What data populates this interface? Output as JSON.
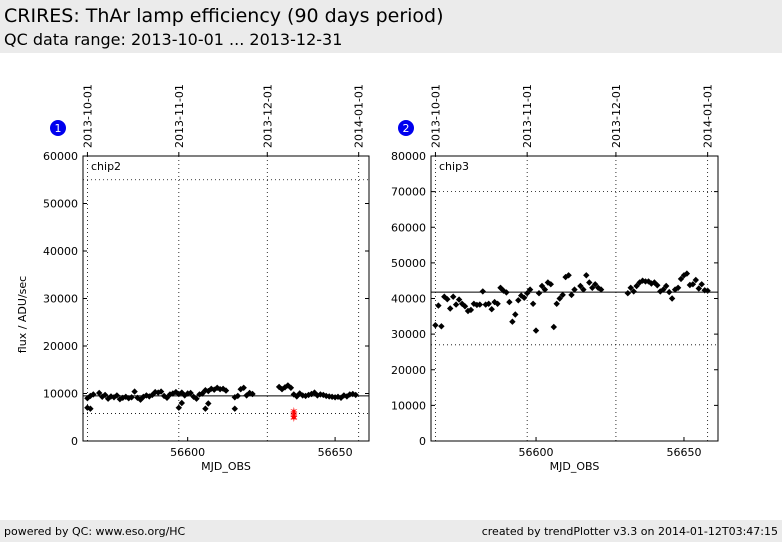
{
  "header": {
    "title": "CRIRES: ThAr lamp efficiency (90 days period)",
    "subtitle": "QC data range: 2013-10-01 ... 2013-12-31"
  },
  "footer": {
    "left": "powered by QC: www.eso.org/HC",
    "right": "created by trendPlotter v3.3 on 2014-01-12T03:47:15"
  },
  "colors": {
    "badge": "#0000ee",
    "points": "#000000",
    "outliers": "#ff0000",
    "header_bg": "#ebebeb"
  },
  "chart_data": [
    {
      "type": "scatter",
      "badge": "1",
      "panel_label": "chip2",
      "xlabel": "MJD_OBS",
      "ylabel": "flux / ADU/sec",
      "xlim": [
        56564.5,
        56661.5
      ],
      "ylim": [
        0,
        60000
      ],
      "xticks": [
        56600,
        56650
      ],
      "yticks": [
        0,
        10000,
        20000,
        30000,
        40000,
        50000,
        60000
      ],
      "top_axis": {
        "labels": [
          "2013-10-01",
          "2013-11-01",
          "2013-12-01",
          "2014-01-01"
        ],
        "mjd": [
          56566,
          56597,
          56627,
          56658
        ]
      },
      "reference_line": 9500,
      "limit_lines": [
        55000,
        5800
      ],
      "x": [
        56566,
        56567,
        56568,
        56570,
        56571,
        56572,
        56573,
        56574,
        56575,
        56576,
        56577,
        56578,
        56579,
        56580,
        56581,
        56582,
        56583,
        56584,
        56585,
        56586,
        56587,
        56588,
        56589,
        56590,
        56591,
        56592,
        56593,
        56594,
        56595,
        56596,
        56597,
        56598,
        56599,
        56600,
        56601,
        56602,
        56603,
        56604,
        56605,
        56606,
        56607,
        56608,
        56609,
        56610,
        56611,
        56612,
        56613,
        56616,
        56617,
        56618,
        56619,
        56620,
        56621,
        56622,
        56631,
        56632,
        56633,
        56634,
        56635,
        56636,
        56637,
        56638,
        56639,
        56640,
        56641,
        56642,
        56643,
        56644,
        56645,
        56646,
        56647,
        56648,
        56649,
        56650,
        56651,
        56652,
        56653,
        56654,
        56655,
        56656,
        56657,
        56566,
        56567,
        56597,
        56598,
        56606,
        56607,
        56616
      ],
      "y": [
        9000,
        9500,
        9800,
        10100,
        9300,
        9700,
        8900,
        9400,
        9200,
        9600,
        8800,
        9100,
        9300,
        9000,
        9200,
        10400,
        9100,
        8700,
        9300,
        9600,
        9400,
        9700,
        10300,
        10200,
        10400,
        9500,
        9100,
        9800,
        10000,
        10300,
        9900,
        10200,
        9600,
        10000,
        10100,
        9300,
        8900,
        9800,
        10000,
        10700,
        10500,
        11000,
        10800,
        11200,
        10900,
        11000,
        10600,
        9200,
        9500,
        10900,
        11200,
        9600,
        10100,
        9900,
        11400,
        10900,
        11300,
        11700,
        11200,
        9800,
        9400,
        10000,
        9600,
        9500,
        9700,
        9900,
        10200,
        9600,
        9800,
        9700,
        9500,
        9400,
        9300,
        9200,
        9300,
        9100,
        9600,
        9400,
        9800,
        9900,
        9700,
        7000,
        6800,
        7000,
        8000,
        6800,
        7900,
        6800
      ],
      "outliers": {
        "x": [
          56636,
          56636,
          56636,
          56636,
          56636
        ],
        "y": [
          6300,
          5900,
          5500,
          5100,
          4800
        ]
      }
    },
    {
      "type": "scatter",
      "badge": "2",
      "panel_label": "chip3",
      "xlabel": "MJD_OBS",
      "ylabel": "",
      "xlim": [
        56564.5,
        56661.5
      ],
      "ylim": [
        0,
        80000
      ],
      "xticks": [
        56600,
        56650
      ],
      "yticks": [
        0,
        10000,
        20000,
        30000,
        40000,
        50000,
        60000,
        70000,
        80000
      ],
      "top_axis": {
        "labels": [
          "2013-10-01",
          "2013-11-01",
          "2013-12-01",
          "2014-01-01"
        ],
        "mjd": [
          56566,
          56597,
          56627,
          56658
        ]
      },
      "reference_line": 41800,
      "limit_lines": [
        70000,
        27000
      ],
      "x": [
        56566,
        56567,
        56568,
        56569,
        56570,
        56571,
        56572,
        56573,
        56574,
        56575,
        56576,
        56577,
        56578,
        56579,
        56580,
        56581,
        56582,
        56583,
        56584,
        56585,
        56586,
        56587,
        56588,
        56589,
        56590,
        56591,
        56592,
        56593,
        56594,
        56595,
        56596,
        56597,
        56598,
        56599,
        56600,
        56601,
        56602,
        56603,
        56604,
        56605,
        56606,
        56607,
        56608,
        56609,
        56610,
        56611,
        56612,
        56613,
        56615,
        56616,
        56617,
        56618,
        56619,
        56620,
        56621,
        56622,
        56631,
        56632,
        56633,
        56634,
        56635,
        56636,
        56637,
        56638,
        56639,
        56640,
        56641,
        56642,
        56643,
        56644,
        56645,
        56646,
        56647,
        56648,
        56649,
        56650,
        56651,
        56652,
        56653,
        56654,
        56655,
        56656,
        56657,
        56658
      ],
      "y": [
        32500,
        38000,
        32200,
        40500,
        39800,
        37200,
        40500,
        38300,
        39700,
        38500,
        37800,
        36500,
        36800,
        38500,
        38200,
        38300,
        42000,
        38300,
        38500,
        37000,
        39000,
        38500,
        43000,
        42200,
        41700,
        39000,
        33500,
        35500,
        39500,
        40800,
        40200,
        41500,
        42500,
        38500,
        31000,
        41500,
        43500,
        42500,
        44500,
        44000,
        32000,
        38500,
        40000,
        41000,
        46000,
        46500,
        41000,
        42500,
        43500,
        42500,
        46500,
        44500,
        43000,
        44000,
        43000,
        42500,
        41500,
        43000,
        42000,
        43500,
        44500,
        45000,
        44800,
        44800,
        44200,
        44500,
        43700,
        42000,
        42500,
        43500,
        41800,
        40000,
        42500,
        43000,
        45500,
        46500,
        47000,
        43800,
        44000,
        45200,
        42800,
        44000,
        42300,
        42200
      ]
    }
  ]
}
